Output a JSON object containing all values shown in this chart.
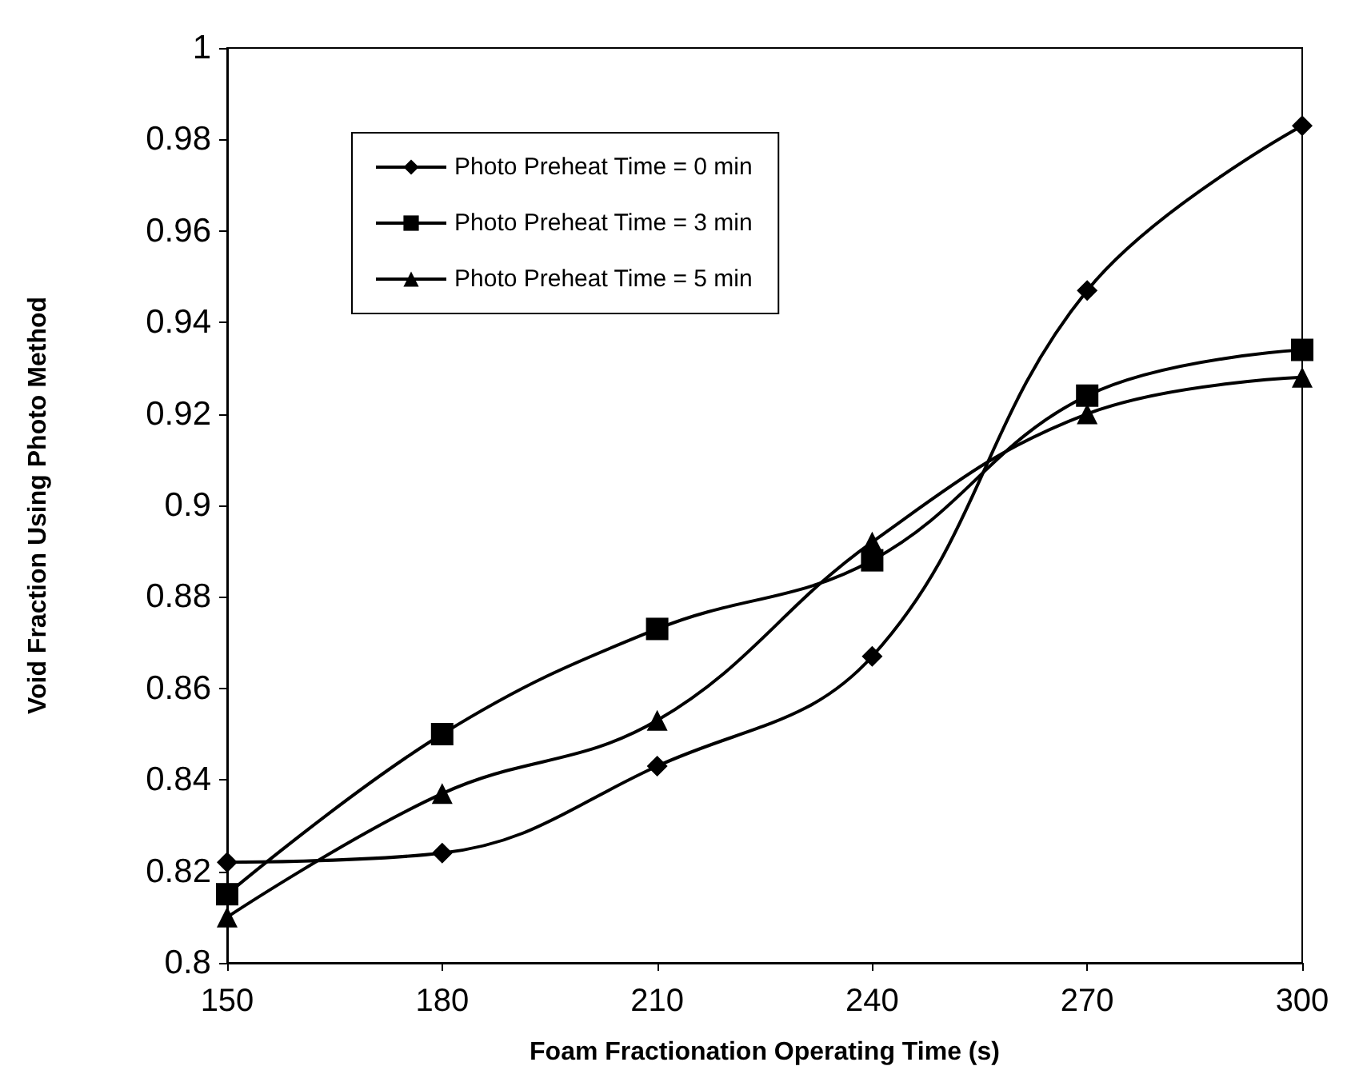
{
  "chart_data": {
    "type": "line",
    "xlabel": "Foam Fractionation Operating Time (s)",
    "ylabel": "Void Fraction Using Photo Method",
    "x": [
      150,
      180,
      210,
      240,
      270,
      300
    ],
    "xlim": [
      150,
      300
    ],
    "xticks": [
      150,
      180,
      210,
      240,
      270,
      300
    ],
    "ylim": [
      0.8,
      1
    ],
    "yticks": [
      0.8,
      0.82,
      0.84,
      0.86,
      0.88,
      0.9,
      0.92,
      0.94,
      0.96,
      0.98,
      1
    ],
    "grid": false,
    "legend": "top left",
    "line_style": "solid",
    "series": [
      {
        "name": "Photo Preheat Time = 0 min",
        "color": "#000000",
        "marker": "diamond",
        "values": [
          0.822,
          0.824,
          0.843,
          0.867,
          0.947,
          0.983
        ]
      },
      {
        "name": "Photo Preheat Time = 3 min",
        "color": "#000000",
        "marker": "square",
        "values": [
          0.815,
          0.85,
          0.873,
          0.888,
          0.924,
          0.934
        ]
      },
      {
        "name": "Photo Preheat Time = 5 min",
        "color": "#000000",
        "marker": "triangle",
        "values": [
          0.81,
          0.837,
          0.853,
          0.892,
          0.92,
          0.928
        ]
      }
    ]
  }
}
